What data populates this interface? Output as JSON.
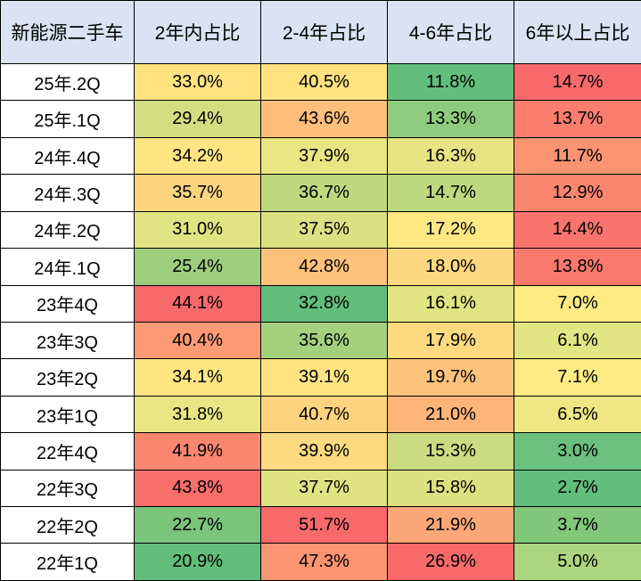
{
  "chart_data": {
    "type": "table",
    "header_bg": "#DAE3F3",
    "columns": [
      "新能源二手车",
      "2年内占比",
      "2-4年占比",
      "4-6年占比",
      "6年以上占比"
    ],
    "rows": [
      {
        "label": "25年.2Q",
        "values": [
          "33.0%",
          "40.5%",
          "11.8%",
          "14.7%"
        ],
        "colors": [
          "#FFE380",
          "#FFE380",
          "#63BE7B",
          "#F8696B"
        ]
      },
      {
        "label": "25年.1Q",
        "values": [
          "29.4%",
          "43.6%",
          "13.3%",
          "13.7%"
        ],
        "colors": [
          "#D2DE81",
          "#FDBF7B",
          "#8FCB7E",
          "#FA7E6E"
        ]
      },
      {
        "label": "24年.4Q",
        "values": [
          "34.2%",
          "37.9%",
          "16.3%",
          "11.7%"
        ],
        "colors": [
          "#FFE583",
          "#E9E582",
          "#E8E483",
          "#FB9473"
        ]
      },
      {
        "label": "24年.3Q",
        "values": [
          "35.7%",
          "36.7%",
          "14.7%",
          "12.9%"
        ],
        "colors": [
          "#FED47F",
          "#BFD880",
          "#BCD880",
          "#FA866F"
        ]
      },
      {
        "label": "24年.2Q",
        "values": [
          "31.0%",
          "37.5%",
          "17.2%",
          "14.4%"
        ],
        "colors": [
          "#E2E382",
          "#DCE082",
          "#FFE884",
          "#F8746C"
        ]
      },
      {
        "label": "24年.1Q",
        "values": [
          "25.4%",
          "42.8%",
          "18.0%",
          "13.8%"
        ],
        "colors": [
          "#9DCE7E",
          "#FDC17C",
          "#FED880",
          "#F9796D"
        ]
      },
      {
        "label": "23年4Q",
        "values": [
          "44.1%",
          "32.8%",
          "16.1%",
          "7.0%"
        ],
        "colors": [
          "#F8696B",
          "#63BE7B",
          "#E2E382",
          "#FFEB84"
        ]
      },
      {
        "label": "23年3Q",
        "values": [
          "40.4%",
          "35.6%",
          "17.9%",
          "6.1%"
        ],
        "colors": [
          "#FB9A74",
          "#A5D17F",
          "#FED97F",
          "#E3E483"
        ]
      },
      {
        "label": "23年2Q",
        "values": [
          "34.1%",
          "39.1%",
          "19.7%",
          "7.1%"
        ],
        "colors": [
          "#FFE583",
          "#FEE382",
          "#FDC37C",
          "#FFEB84"
        ]
      },
      {
        "label": "23年1Q",
        "values": [
          "31.8%",
          "40.7%",
          "21.0%",
          "6.5%"
        ],
        "colors": [
          "#E9E582",
          "#FED37F",
          "#FDB57A",
          "#EFE784"
        ]
      },
      {
        "label": "22年4Q",
        "values": [
          "41.9%",
          "39.9%",
          "15.3%",
          "3.0%"
        ],
        "colors": [
          "#FA8670",
          "#FDDA80",
          "#CBDB81",
          "#6AC07C"
        ]
      },
      {
        "label": "22年3Q",
        "values": [
          "43.8%",
          "37.7%",
          "15.8%",
          "2.7%"
        ],
        "colors": [
          "#F86E6B",
          "#E1E282",
          "#DDE182",
          "#63BE7B"
        ]
      },
      {
        "label": "22年2Q",
        "values": [
          "22.7%",
          "51.7%",
          "21.9%",
          "3.7%"
        ],
        "colors": [
          "#7BC57D",
          "#F8696B",
          "#FCA777",
          "#81C87D"
        ]
      },
      {
        "label": "22年1Q",
        "values": [
          "20.9%",
          "47.3%",
          "26.9%",
          "5.0%"
        ],
        "colors": [
          "#63BE7B",
          "#FB9473",
          "#F8696B",
          "#ADD480"
        ]
      }
    ]
  }
}
